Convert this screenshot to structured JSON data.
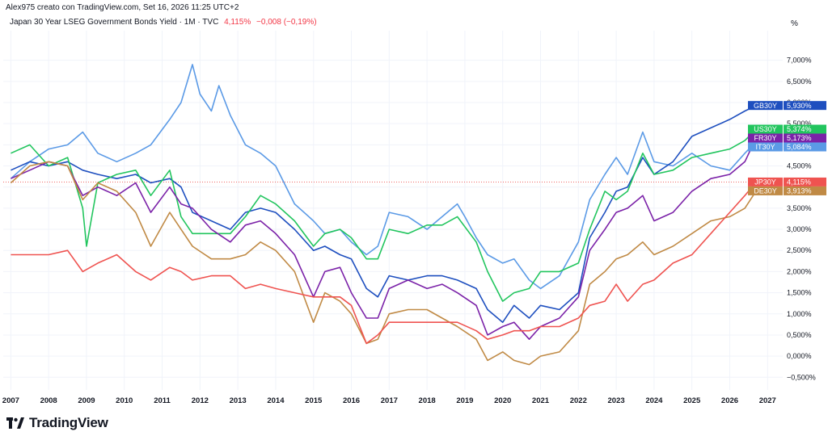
{
  "header": {
    "credit": "Alex975 creato con TradingView.com, Set 16, 2026 11:25 UTC+2",
    "symbol": "Japan 30 Year LSEG Government Bonds Yield · 1M · TVC",
    "last": "4,115%",
    "change": "−0,008 (−0,19%)"
  },
  "unit_label": "%",
  "brand": {
    "name": "TradingView"
  },
  "colors": {
    "GB30Y": "#1e4fbf",
    "US30Y": "#22c55e",
    "FR30Y": "#7b22a8",
    "IT30Y": "#5b9ae6",
    "JP30Y": "#ef5350",
    "DE30Y": "#c08a45",
    "grid": "#f0f3fa",
    "ref_line": "#ef5350"
  },
  "chart_data": {
    "type": "line",
    "title": "Japan 30 Year LSEG Government Bonds Yield · 1M · TVC",
    "xlabel": "",
    "ylabel": "%",
    "xlim": [
      2006.8,
      2027.4
    ],
    "ylim": [
      -0.8,
      7.7
    ],
    "y_ticks": [
      {
        "v": 7.0,
        "label": "7,000%"
      },
      {
        "v": 6.5,
        "label": "6,500%"
      },
      {
        "v": 6.0,
        "label": "6,000%"
      },
      {
        "v": 5.5,
        "label": "5,500%"
      },
      {
        "v": 5.0,
        "label": "5,000%"
      },
      {
        "v": 4.5,
        "label": "4,500%"
      },
      {
        "v": 4.0,
        "label": "4,000%"
      },
      {
        "v": 3.5,
        "label": "3,500%"
      },
      {
        "v": 3.0,
        "label": "3,000%"
      },
      {
        "v": 2.5,
        "label": "2,500%"
      },
      {
        "v": 2.0,
        "label": "2,000%"
      },
      {
        "v": 1.5,
        "label": "1,500%"
      },
      {
        "v": 1.0,
        "label": "1,000%"
      },
      {
        "v": 0.5,
        "label": "0,500%"
      },
      {
        "v": 0.0,
        "label": "0,000%"
      },
      {
        "v": -0.5,
        "label": "−0,500%"
      }
    ],
    "x_ticks": [
      "2007",
      "2008",
      "2009",
      "2010",
      "2011",
      "2012",
      "2013",
      "2014",
      "2015",
      "2016",
      "2017",
      "2018",
      "2019",
      "2020",
      "2021",
      "2022",
      "2023",
      "2024",
      "2025",
      "2026",
      "2027"
    ],
    "series": [
      {
        "name": "IT30Y",
        "last_label": "5,084%",
        "color": "#5b9ae6",
        "x": [
          2007.0,
          2007.5,
          2008.0,
          2008.5,
          2008.9,
          2009.3,
          2009.8,
          2010.3,
          2010.7,
          2011.2,
          2011.5,
          2011.8,
          2012.0,
          2012.3,
          2012.5,
          2012.8,
          2013.2,
          2013.6,
          2014.0,
          2014.5,
          2015.0,
          2015.3,
          2015.7,
          2016.0,
          2016.4,
          2016.7,
          2017.0,
          2017.5,
          2018.0,
          2018.4,
          2018.8,
          2019.0,
          2019.3,
          2019.6,
          2020.0,
          2020.3,
          2020.7,
          2021.0,
          2021.5,
          2022.0,
          2022.3,
          2022.7,
          2023.0,
          2023.3,
          2023.7,
          2024.0,
          2024.5,
          2025.0,
          2025.5,
          2026.0,
          2026.4,
          2026.7
        ],
        "y": [
          4.2,
          4.6,
          4.9,
          5.0,
          5.3,
          4.8,
          4.6,
          4.8,
          5.0,
          5.6,
          6.0,
          6.9,
          6.2,
          5.8,
          6.4,
          5.7,
          5.0,
          4.8,
          4.5,
          3.6,
          3.2,
          2.9,
          3.0,
          2.7,
          2.4,
          2.6,
          3.4,
          3.3,
          3.0,
          3.3,
          3.6,
          3.3,
          2.8,
          2.4,
          2.2,
          2.3,
          1.8,
          1.6,
          1.9,
          2.7,
          3.7,
          4.3,
          4.7,
          4.3,
          5.3,
          4.6,
          4.5,
          4.8,
          4.5,
          4.4,
          4.8,
          5.08
        ]
      },
      {
        "name": "GB30Y",
        "last_label": "5,930%",
        "color": "#1e4fbf",
        "x": [
          2007.0,
          2007.5,
          2008.0,
          2008.5,
          2008.9,
          2009.3,
          2009.8,
          2010.3,
          2010.7,
          2011.2,
          2011.5,
          2011.8,
          2012.3,
          2012.8,
          2013.2,
          2013.6,
          2014.0,
          2014.5,
          2015.0,
          2015.3,
          2015.7,
          2016.0,
          2016.4,
          2016.7,
          2017.0,
          2017.5,
          2018.0,
          2018.4,
          2018.8,
          2019.3,
          2019.6,
          2020.0,
          2020.3,
          2020.7,
          2021.0,
          2021.5,
          2022.0,
          2022.3,
          2022.7,
          2023.0,
          2023.3,
          2023.7,
          2024.0,
          2024.5,
          2025.0,
          2025.5,
          2026.0,
          2026.4,
          2026.7
        ],
        "y": [
          4.4,
          4.6,
          4.5,
          4.6,
          4.4,
          4.3,
          4.2,
          4.3,
          4.1,
          4.2,
          4.0,
          3.4,
          3.2,
          3.0,
          3.4,
          3.5,
          3.4,
          3.0,
          2.5,
          2.6,
          2.4,
          2.3,
          1.6,
          1.4,
          1.9,
          1.8,
          1.9,
          1.9,
          1.8,
          1.6,
          1.1,
          0.8,
          1.2,
          0.9,
          1.2,
          1.1,
          1.5,
          2.8,
          3.4,
          3.9,
          4.0,
          4.7,
          4.3,
          4.6,
          5.2,
          5.4,
          5.6,
          5.8,
          5.93
        ]
      },
      {
        "name": "US30Y",
        "last_label": "5,374%",
        "color": "#22c55e",
        "x": [
          2007.0,
          2007.5,
          2008.0,
          2008.5,
          2008.9,
          2009.0,
          2009.3,
          2009.8,
          2010.3,
          2010.7,
          2011.2,
          2011.5,
          2011.8,
          2012.3,
          2012.8,
          2013.2,
          2013.6,
          2014.0,
          2014.5,
          2015.0,
          2015.3,
          2015.7,
          2016.0,
          2016.4,
          2016.7,
          2017.0,
          2017.5,
          2018.0,
          2018.4,
          2018.8,
          2019.3,
          2019.6,
          2020.0,
          2020.3,
          2020.7,
          2021.0,
          2021.5,
          2022.0,
          2022.3,
          2022.7,
          2023.0,
          2023.3,
          2023.7,
          2024.0,
          2024.5,
          2025.0,
          2025.5,
          2026.0,
          2026.4,
          2026.7
        ],
        "y": [
          4.8,
          5.0,
          4.5,
          4.7,
          3.5,
          2.6,
          4.1,
          4.3,
          4.4,
          3.8,
          4.4,
          3.3,
          2.9,
          2.9,
          2.9,
          3.3,
          3.8,
          3.6,
          3.2,
          2.6,
          2.9,
          3.0,
          2.8,
          2.3,
          2.3,
          3.0,
          2.9,
          3.1,
          3.1,
          3.3,
          2.7,
          2.0,
          1.3,
          1.5,
          1.6,
          2.0,
          2.0,
          2.2,
          3.0,
          3.9,
          3.7,
          3.9,
          4.8,
          4.3,
          4.4,
          4.7,
          4.8,
          4.9,
          5.1,
          5.37
        ]
      },
      {
        "name": "FR30Y",
        "last_label": "5,173%",
        "color": "#7b22a8",
        "x": [
          2007.0,
          2007.5,
          2008.0,
          2008.5,
          2008.9,
          2009.3,
          2009.8,
          2010.3,
          2010.7,
          2011.2,
          2011.5,
          2011.8,
          2012.3,
          2012.8,
          2013.2,
          2013.6,
          2014.0,
          2014.5,
          2015.0,
          2015.3,
          2015.7,
          2016.0,
          2016.4,
          2016.7,
          2017.0,
          2017.5,
          2018.0,
          2018.4,
          2018.8,
          2019.3,
          2019.6,
          2020.0,
          2020.3,
          2020.7,
          2021.0,
          2021.5,
          2022.0,
          2022.3,
          2022.7,
          2023.0,
          2023.3,
          2023.7,
          2024.0,
          2024.5,
          2025.0,
          2025.5,
          2026.0,
          2026.4,
          2026.7
        ],
        "y": [
          4.2,
          4.4,
          4.6,
          4.5,
          3.8,
          4.0,
          3.8,
          4.1,
          3.4,
          4.0,
          3.6,
          3.5,
          3.0,
          2.7,
          3.1,
          3.2,
          2.9,
          2.4,
          1.4,
          2.0,
          2.1,
          1.5,
          0.9,
          0.9,
          1.6,
          1.8,
          1.6,
          1.7,
          1.5,
          1.2,
          0.5,
          0.7,
          0.8,
          0.4,
          0.7,
          0.9,
          1.4,
          2.5,
          3.0,
          3.4,
          3.5,
          3.8,
          3.2,
          3.4,
          3.9,
          4.2,
          4.3,
          4.6,
          5.17
        ]
      },
      {
        "name": "DE30Y",
        "last_label": "3,913%",
        "color": "#c08a45",
        "x": [
          2007.0,
          2007.5,
          2008.0,
          2008.5,
          2008.9,
          2009.3,
          2009.8,
          2010.3,
          2010.7,
          2011.2,
          2011.5,
          2011.8,
          2012.3,
          2012.8,
          2013.2,
          2013.6,
          2014.0,
          2014.5,
          2015.0,
          2015.3,
          2015.7,
          2016.0,
          2016.4,
          2016.7,
          2017.0,
          2017.5,
          2018.0,
          2018.4,
          2018.8,
          2019.3,
          2019.6,
          2020.0,
          2020.3,
          2020.7,
          2021.0,
          2021.5,
          2022.0,
          2022.3,
          2022.7,
          2023.0,
          2023.3,
          2023.7,
          2024.0,
          2024.5,
          2025.0,
          2025.5,
          2026.0,
          2026.4,
          2026.7
        ],
        "y": [
          4.1,
          4.5,
          4.6,
          4.5,
          3.7,
          4.1,
          3.9,
          3.4,
          2.6,
          3.4,
          3.0,
          2.6,
          2.3,
          2.3,
          2.4,
          2.7,
          2.5,
          2.0,
          0.8,
          1.5,
          1.3,
          1.0,
          0.3,
          0.4,
          1.0,
          1.1,
          1.1,
          0.9,
          0.7,
          0.4,
          -0.1,
          0.1,
          -0.1,
          -0.2,
          0.0,
          0.1,
          0.6,
          1.7,
          2.0,
          2.3,
          2.4,
          2.7,
          2.4,
          2.6,
          2.9,
          3.2,
          3.3,
          3.5,
          3.91
        ]
      },
      {
        "name": "JP30Y",
        "last_label": "4,115%",
        "color": "#ef5350",
        "x": [
          2007.0,
          2007.5,
          2008.0,
          2008.5,
          2008.9,
          2009.3,
          2009.8,
          2010.3,
          2010.7,
          2011.2,
          2011.5,
          2011.8,
          2012.3,
          2012.8,
          2013.2,
          2013.6,
          2014.0,
          2014.5,
          2015.0,
          2015.3,
          2015.7,
          2016.0,
          2016.4,
          2016.7,
          2017.0,
          2017.5,
          2018.0,
          2018.4,
          2018.8,
          2019.3,
          2019.6,
          2020.0,
          2020.3,
          2020.7,
          2021.0,
          2021.5,
          2022.0,
          2022.3,
          2022.7,
          2023.0,
          2023.3,
          2023.7,
          2024.0,
          2024.5,
          2025.0,
          2025.5,
          2026.0,
          2026.4,
          2026.7
        ],
        "y": [
          2.4,
          2.4,
          2.4,
          2.5,
          2.0,
          2.2,
          2.4,
          2.0,
          1.8,
          2.1,
          2.0,
          1.8,
          1.9,
          1.9,
          1.6,
          1.7,
          1.6,
          1.5,
          1.4,
          1.4,
          1.4,
          1.2,
          0.3,
          0.5,
          0.8,
          0.8,
          0.8,
          0.8,
          0.8,
          0.6,
          0.4,
          0.5,
          0.6,
          0.6,
          0.7,
          0.7,
          0.9,
          1.2,
          1.3,
          1.7,
          1.3,
          1.7,
          1.8,
          2.2,
          2.4,
          2.9,
          3.4,
          3.8,
          4.12
        ]
      }
    ],
    "legend_placement": "right-axis tags",
    "grid": true
  }
}
